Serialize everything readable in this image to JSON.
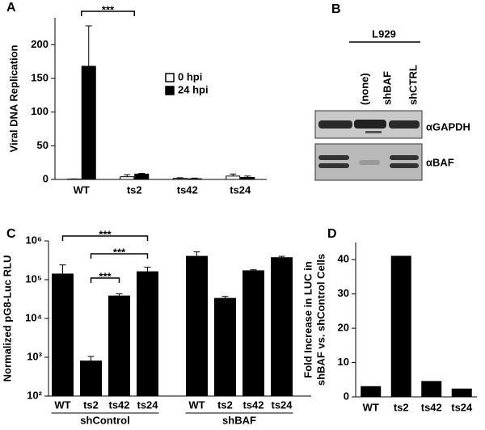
{
  "chart_data": [
    {
      "type": "bar",
      "panel": "A",
      "y_label": [
        "Viral DNA Replication"
      ],
      "categories": [
        "WT",
        "ts2",
        "ts42",
        "ts24"
      ],
      "series": [
        {
          "name": "0 hpi",
          "color": "#ffffff",
          "values": [
            0.5,
            4,
            1.5,
            5
          ],
          "errors": [
            0.3,
            3,
            1,
            3
          ]
        },
        {
          "name": "24 hpi",
          "color": "#000000",
          "values": [
            168,
            8,
            1,
            3
          ],
          "errors": [
            60,
            1,
            1,
            2
          ]
        }
      ],
      "ylim": [
        0,
        240
      ],
      "yticks": [
        0,
        50,
        100,
        150,
        200
      ],
      "significance": [
        {
          "from": 0,
          "to": 1,
          "label": "***"
        }
      ]
    },
    {
      "type": "bar",
      "panel": "C",
      "y_label": [
        "Normalized pG8-Luc RLU"
      ],
      "log": true,
      "color": "#000000",
      "groups": [
        {
          "name": "shControl",
          "categories": [
            "WT",
            "ts2",
            "ts42",
            "ts24"
          ],
          "values": [
            140000,
            800,
            38000,
            160000
          ],
          "errors": [
            100000,
            250,
            5000,
            50000
          ]
        },
        {
          "name": "shBAF",
          "categories": [
            "WT",
            "ts2",
            "ts42",
            "ts24"
          ],
          "values": [
            400000,
            33000,
            170000,
            370000
          ],
          "errors": [
            120000,
            4000,
            10000,
            30000
          ]
        }
      ],
      "ylim": [
        100,
        1000000
      ],
      "yticks": [
        {
          "value": 100,
          "label": "10²"
        },
        {
          "value": 1000,
          "label": "10³"
        },
        {
          "value": 10000,
          "label": "10⁴"
        },
        {
          "value": 100000,
          "label": "10⁵"
        },
        {
          "value": 1000000,
          "label": "10⁶"
        }
      ],
      "significance": [
        {
          "from": 1,
          "to": 2,
          "label": "***"
        },
        {
          "from": 1,
          "to": 3,
          "label": "***"
        },
        {
          "from": 0,
          "to": 3,
          "label": "***"
        }
      ]
    },
    {
      "type": "bar",
      "panel": "D",
      "y_label": [
        "Fold Increase in LUC in",
        "shBAF vs. shControl Cells"
      ],
      "color": "#000000",
      "categories": [
        "WT",
        "ts2",
        "ts42",
        "ts24"
      ],
      "values": [
        3,
        41,
        4.5,
        2.3
      ],
      "ylim": [
        0,
        45
      ],
      "yticks": [
        0,
        10,
        20,
        30,
        40
      ]
    }
  ],
  "blot": {
    "panel": "B",
    "cell_line": "L929",
    "lanes": [
      "(none)",
      "shBAF",
      "shCTRL"
    ],
    "antibodies": [
      "αGAPDH",
      "αBAF"
    ]
  }
}
